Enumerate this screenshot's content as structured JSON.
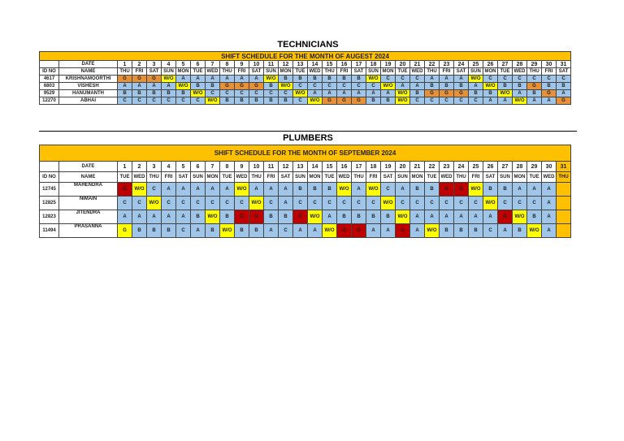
{
  "technicians": {
    "section_title": "TECHNICIANS",
    "banner": "SHIFT SCHEDULE FOR THE MONTH OF AUGEST 2024",
    "date_label": "DATE",
    "id_label": "ID NO",
    "name_label": "NAME",
    "dates": [
      "1",
      "2",
      "3",
      "4",
      "5",
      "6",
      "7",
      "8",
      "9",
      "10",
      "11",
      "12",
      "13",
      "14",
      "15",
      "16",
      "17",
      "18",
      "19",
      "20",
      "21",
      "22",
      "23",
      "24",
      "25",
      "26",
      "27",
      "28",
      "29",
      "30",
      "31"
    ],
    "days": [
      "THU",
      "FRI",
      "SAT",
      "SUN",
      "MON",
      "TUE",
      "WED",
      "THU",
      "FRI",
      "SAT",
      "SUN",
      "MON",
      "TUE",
      "WED",
      "THU",
      "FRI",
      "SAT",
      "SUN",
      "MON",
      "TUE",
      "WED",
      "THU",
      "FRI",
      "SAT",
      "SUN",
      "MON",
      "TUE",
      "WED",
      "THU",
      "FRI",
      "SAT"
    ],
    "rows": [
      {
        "id": "4617",
        "name": "KRISHNAMOORTHI",
        "cells": [
          "G",
          "G",
          "G",
          "W/O",
          "A",
          "A",
          "A",
          "A",
          "A",
          "A",
          "W/O",
          "B",
          "B",
          "B",
          "B",
          "B",
          "B",
          "W/O",
          "C",
          "C",
          "C",
          "A",
          "A",
          "A",
          "W/O",
          "C",
          "C",
          "C",
          "C",
          "C",
          "C"
        ]
      },
      {
        "id": "6803",
        "name": "VISHESH",
        "cells": [
          "A",
          "A",
          "A",
          "A",
          "W/O",
          "B",
          "B",
          "G",
          "G",
          "G",
          "B",
          "W/O",
          "C",
          "C",
          "C",
          "C",
          "C",
          "C",
          "W/O",
          "A",
          "A",
          "B",
          "B",
          "B",
          "A",
          "W/O",
          "B",
          "B",
          "G",
          "B",
          "B"
        ]
      },
      {
        "id": "9529",
        "name": "HANUMANTH",
        "cells": [
          "B",
          "B",
          "B",
          "B",
          "B",
          "W/O",
          "C",
          "C",
          "C",
          "C",
          "C",
          "C",
          "W/O",
          "A",
          "A",
          "A",
          "A",
          "A",
          "A",
          "W/O",
          "B",
          "G",
          "G",
          "G",
          "B",
          "B",
          "W/O",
          "A",
          "B",
          "G",
          "A"
        ]
      },
      {
        "id": "12270",
        "name": "ABHAI",
        "cells": [
          "C",
          "C",
          "C",
          "C",
          "C",
          "C",
          "W/O",
          "B",
          "B",
          "B",
          "B",
          "B",
          "C",
          "W/O",
          "G",
          "G",
          "G",
          "B",
          "B",
          "W/O",
          "C",
          "C",
          "C",
          "C",
          "C",
          "A",
          "A",
          "W/O",
          "A",
          "A",
          "G"
        ]
      }
    ]
  },
  "plumbers": {
    "section_title": "PLUMBERS",
    "banner": "SHIFT SCHEDULE FOR THE MONTH OF SEPTEMBER 2024",
    "date_label": "DATE",
    "id_label": "ID NO",
    "name_label": "NAME",
    "dates": [
      "1",
      "2",
      "3",
      "4",
      "5",
      "6",
      "7",
      "8",
      "9",
      "10",
      "11",
      "12",
      "13",
      "14",
      "15",
      "16",
      "17",
      "18",
      "19",
      "20",
      "21",
      "22",
      "23",
      "24",
      "25",
      "26",
      "27",
      "28",
      "29",
      "30",
      "31"
    ],
    "days": [
      "TUE",
      "WED",
      "THU",
      "FRI",
      "SAT",
      "SUN",
      "MON",
      "TUE",
      "WED",
      "THU",
      "FRI",
      "SAT",
      "SUN",
      "MON",
      "TUE",
      "WED",
      "THU",
      "FRI",
      "SAT",
      "SUN",
      "MON",
      "TUE",
      "WED",
      "THU",
      "FRI",
      "SAT",
      "SUN",
      "MON",
      "TUE",
      "WED",
      "THU"
    ],
    "rows": [
      {
        "id": "12745",
        "name": "MAHENDRA",
        "cells": [
          "G",
          "W/O",
          "C",
          "A",
          "A",
          "A",
          "A",
          "A",
          "W/O",
          "A",
          "A",
          "A",
          "B",
          "B",
          "B",
          "W/O",
          "A",
          "W/O",
          "C",
          "A",
          "B",
          "B",
          "G",
          "G",
          "W/O",
          "B",
          "B",
          "A",
          "A",
          "A",
          ""
        ]
      },
      {
        "id": "12825",
        "name": "NIMAIN",
        "cells": [
          "C",
          "C",
          "W/O",
          "C",
          "C",
          "C",
          "C",
          "C",
          "C",
          "W/O",
          "C",
          "A",
          "C",
          "C",
          "C",
          "C",
          "C",
          "C",
          "W/O",
          "C",
          "C",
          "C",
          "C",
          "C",
          "C",
          "W/O",
          "C",
          "C",
          "C",
          "A",
          ""
        ]
      },
      {
        "id": "12823",
        "name": "JITENDRA",
        "cells": [
          "A",
          "A",
          "A",
          "A",
          "A",
          "B",
          "W/O",
          "B",
          "G",
          "G",
          "B",
          "B",
          "G",
          "W/O",
          "A",
          "B",
          "B",
          "B",
          "B",
          "W/O",
          "A",
          "A",
          "A",
          "A",
          "A",
          "A",
          "G",
          "W/O",
          "B",
          "A",
          ""
        ]
      },
      {
        "id": "11494",
        "name": "PRASANNA",
        "cells": [
          "G",
          "B",
          "B",
          "B",
          "C",
          "A",
          "B",
          "W/O",
          "B",
          "B",
          "A",
          "C",
          "A",
          "A",
          "W/O",
          "G",
          "G",
          "A",
          "A",
          "G",
          "A",
          "W/O",
          "B",
          "B",
          "B",
          "C",
          "A",
          "B",
          "W/O",
          "A",
          ""
        ]
      }
    ],
    "colors": {
      "12745": [
        "R",
        "W",
        "S",
        "S",
        "S",
        "S",
        "S",
        "S",
        "W",
        "S",
        "S",
        "S",
        "S",
        "S",
        "S",
        "W",
        "S",
        "W",
        "S",
        "S",
        "S",
        "S",
        "R",
        "R",
        "W",
        "S",
        "S",
        "S",
        "S",
        "S",
        "O"
      ],
      "12825": [
        "S",
        "S",
        "W",
        "S",
        "S",
        "S",
        "S",
        "S",
        "S",
        "W",
        "S",
        "S",
        "S",
        "S",
        "S",
        "S",
        "S",
        "S",
        "W",
        "S",
        "S",
        "S",
        "S",
        "S",
        "S",
        "W",
        "S",
        "S",
        "S",
        "S",
        "O"
      ],
      "12823": [
        "S",
        "S",
        "S",
        "S",
        "S",
        "S",
        "W",
        "S",
        "R",
        "R",
        "S",
        "S",
        "R",
        "W",
        "S",
        "S",
        "S",
        "S",
        "S",
        "W",
        "S",
        "S",
        "S",
        "S",
        "S",
        "S",
        "R",
        "W",
        "S",
        "S",
        "O"
      ],
      "11494": [
        "W",
        "S",
        "S",
        "S",
        "S",
        "S",
        "S",
        "W",
        "S",
        "S",
        "S",
        "S",
        "S",
        "S",
        "W",
        "R",
        "R",
        "S",
        "S",
        "R",
        "S",
        "W",
        "S",
        "S",
        "S",
        "S",
        "S",
        "S",
        "W",
        "S",
        "O"
      ]
    }
  },
  "palette": {
    "banner": "#ffc000",
    "shift": "#9fc5e8",
    "general": "#e69138",
    "week_off": "#ffff00",
    "red_flag": "#c00000"
  }
}
